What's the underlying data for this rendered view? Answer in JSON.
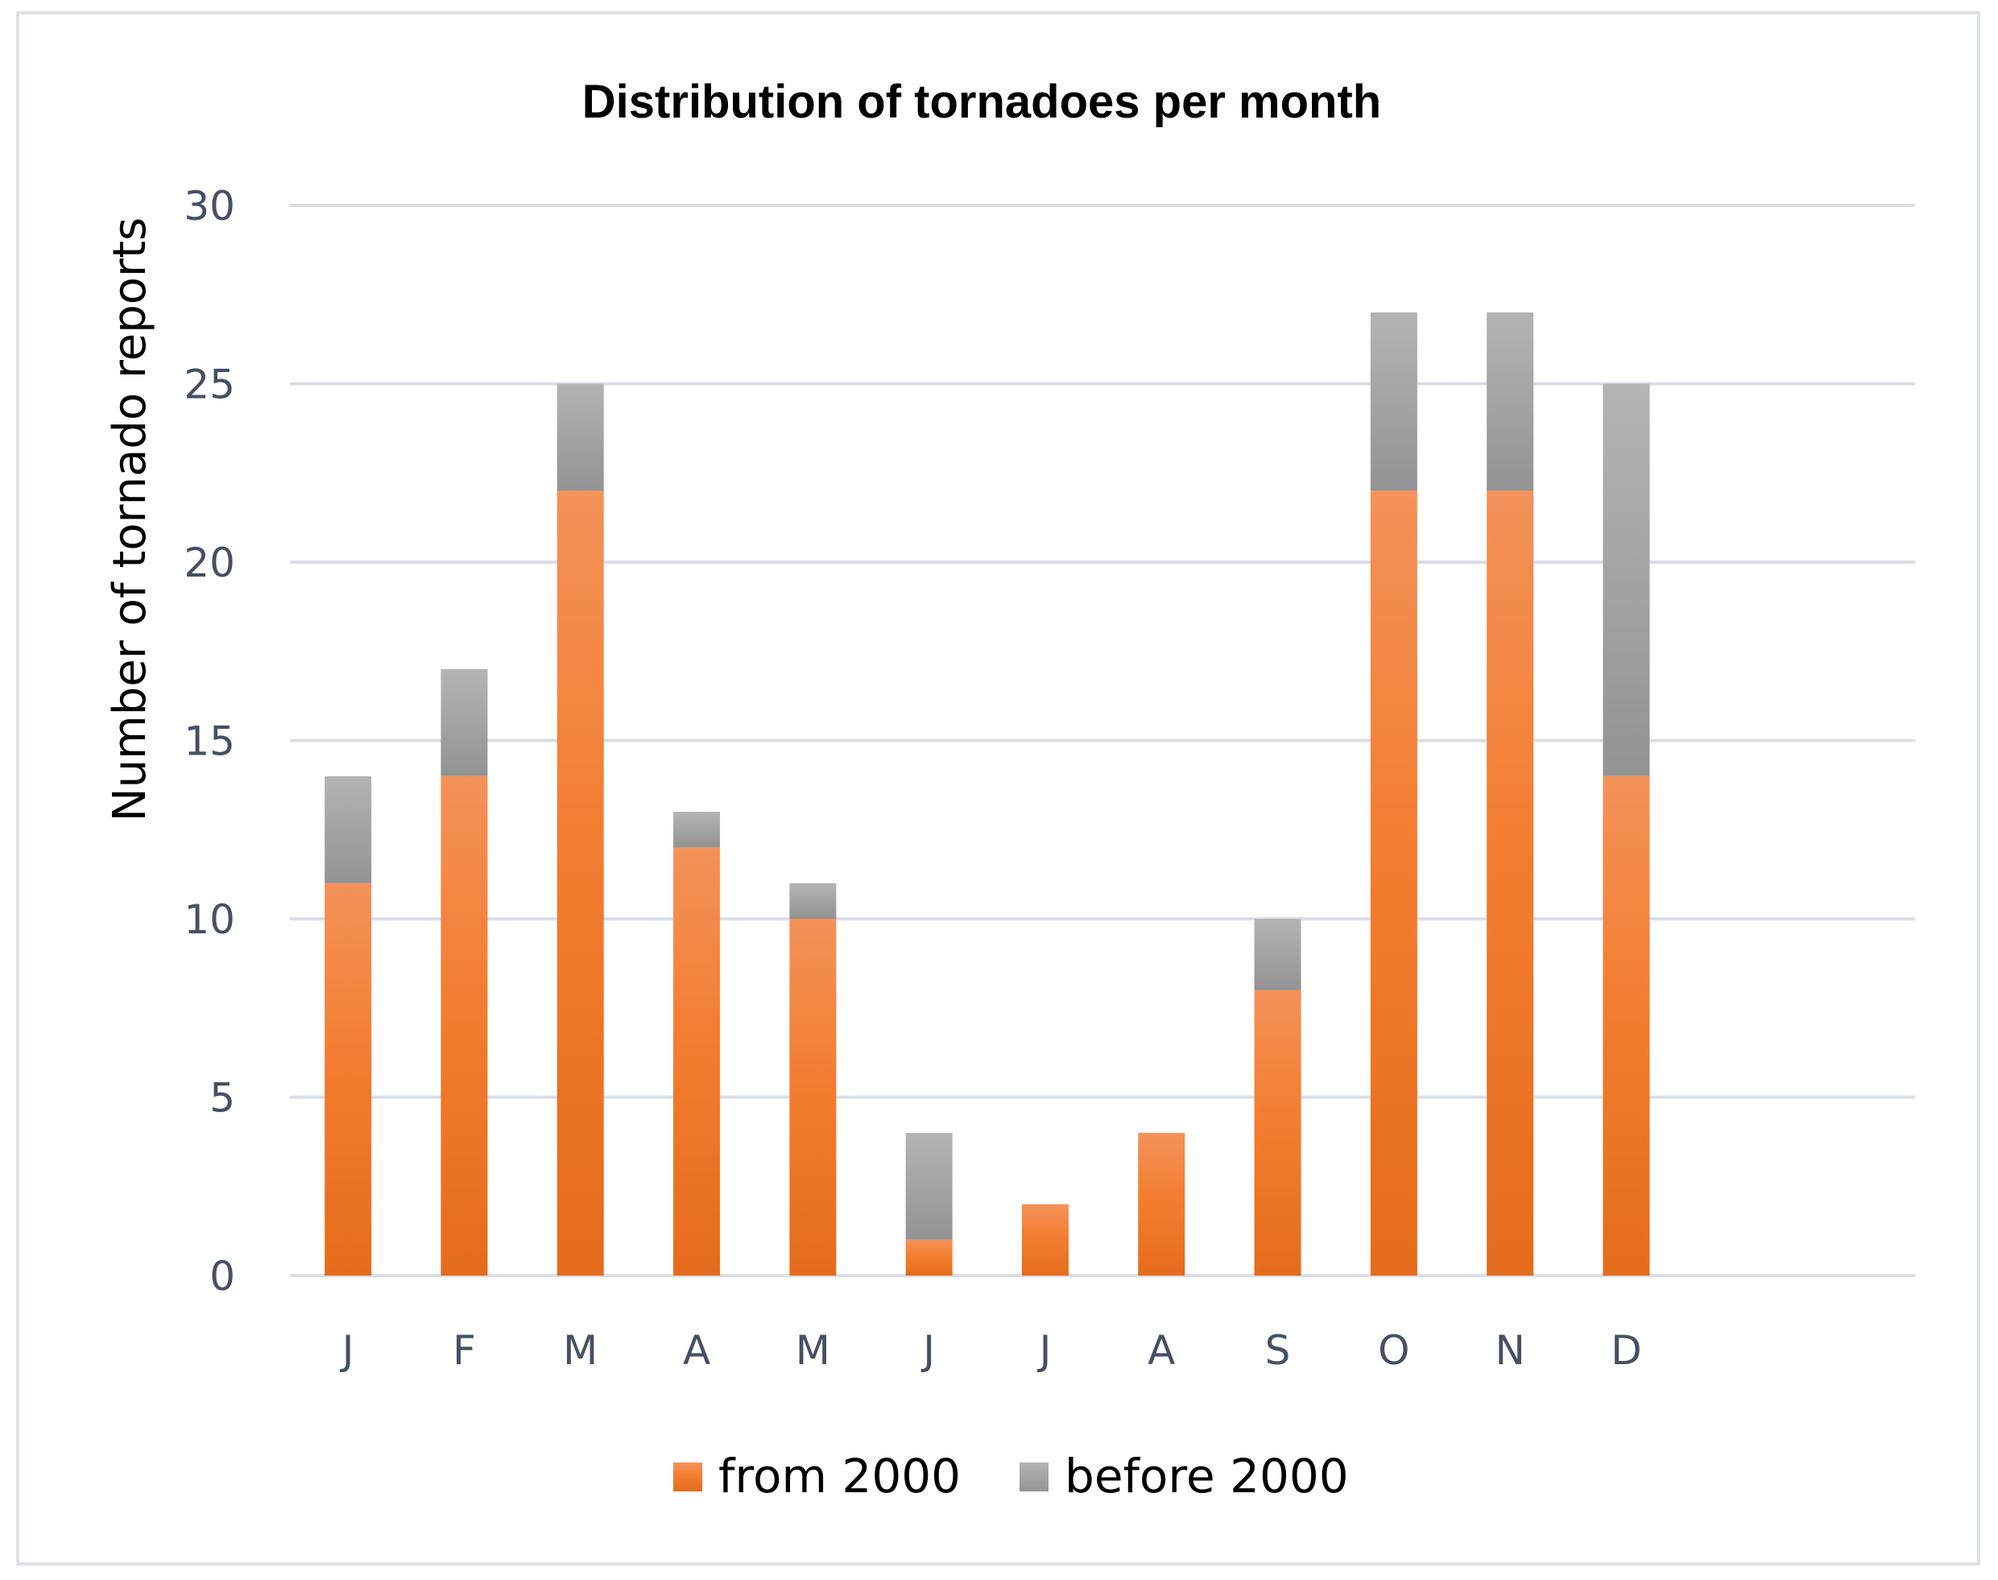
{
  "chart_data": {
    "type": "bar",
    "stacked": true,
    "title": "Distribution of tornadoes per month",
    "xlabel": "",
    "ylabel": "Number of tornado reports",
    "categories": [
      "J",
      "F",
      "M",
      "A",
      "M",
      "J",
      "J",
      "A",
      "S",
      "O",
      "N",
      "D"
    ],
    "series": [
      {
        "name": "from 2000",
        "color": "#f07c2c",
        "values": [
          11,
          14,
          22,
          12,
          10,
          1,
          2,
          4,
          8,
          22,
          22,
          14
        ]
      },
      {
        "name": "before 2000",
        "color": "#a6a6a6",
        "values": [
          3,
          3,
          3,
          1,
          1,
          3,
          0,
          0,
          2,
          5,
          5,
          11
        ]
      }
    ],
    "ylim": [
      0,
      30
    ],
    "yticks": [
      "0",
      "5",
      "10",
      "15",
      "20",
      "25",
      "30"
    ],
    "grid": true,
    "legend_position": "bottom",
    "gridline_color": "#d9dee8",
    "tick_label_color": "#465064"
  }
}
